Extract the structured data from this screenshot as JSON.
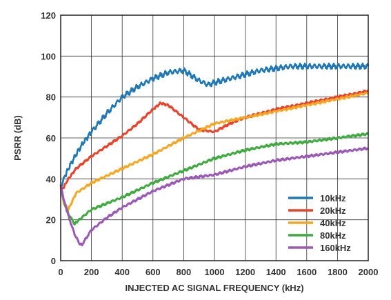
{
  "chart_data": {
    "type": "line",
    "xlabel": "INJECTED AC SIGNAL FREQUENCY (kHz)",
    "ylabel": "PSRR (dB)",
    "xlim": [
      0,
      2000
    ],
    "ylim": [
      0,
      120
    ],
    "xticks": [
      0,
      200,
      400,
      600,
      800,
      1000,
      1200,
      1400,
      1600,
      1800,
      2000
    ],
    "yticks": [
      0,
      20,
      40,
      60,
      80,
      100,
      120
    ],
    "grid": true,
    "legend_position": "bottom-right",
    "series": [
      {
        "name": "10kHz",
        "color": "#1f77b4",
        "x": [
          0,
          20,
          50,
          100,
          150,
          200,
          300,
          400,
          500,
          600,
          700,
          800,
          900,
          960,
          1000,
          1100,
          1200,
          1300,
          1400,
          1500,
          1600,
          1700,
          1800,
          1900,
          2000
        ],
        "y": [
          36,
          40,
          45,
          52,
          58,
          63,
          72,
          80,
          85,
          89,
          92,
          93,
          88,
          86,
          87,
          89,
          91,
          93,
          94,
          95,
          95,
          95,
          95,
          95,
          95
        ]
      },
      {
        "name": "20kHz",
        "color": "#e8432b",
        "x": [
          0,
          20,
          50,
          100,
          200,
          300,
          400,
          500,
          600,
          650,
          700,
          800,
          900,
          1000,
          1100,
          1200,
          1400,
          1600,
          1800,
          2000
        ],
        "y": [
          35,
          36,
          40,
          45,
          51,
          56,
          61,
          67,
          74,
          77,
          76,
          70,
          64,
          63,
          67,
          70,
          74,
          77,
          80,
          83
        ]
      },
      {
        "name": "40kHz",
        "color": "#f5a623",
        "x": [
          0,
          20,
          50,
          100,
          200,
          400,
          600,
          800,
          1000,
          1200,
          1400,
          1600,
          1800,
          2000
        ],
        "y": [
          36,
          28,
          25,
          33,
          38,
          45,
          52,
          60,
          67,
          70,
          73,
          76,
          79,
          82
        ]
      },
      {
        "name": "80kHz",
        "color": "#3faa3f",
        "x": [
          0,
          20,
          50,
          90,
          120,
          200,
          400,
          600,
          800,
          1000,
          1200,
          1400,
          1600,
          1800,
          2000
        ],
        "y": [
          37,
          29,
          23,
          18,
          20,
          25,
          31,
          38,
          44,
          50,
          54,
          57,
          58,
          60,
          62
        ]
      },
      {
        "name": "160kHz",
        "color": "#9b59b6",
        "x": [
          0,
          20,
          50,
          90,
          125,
          140,
          200,
          300,
          400,
          600,
          800,
          1000,
          1200,
          1400,
          1600,
          1800,
          2000
        ],
        "y": [
          37,
          30,
          22,
          13,
          8,
          8,
          15,
          21,
          26,
          34,
          40,
          42,
          46,
          49,
          51,
          53,
          55
        ]
      }
    ]
  }
}
